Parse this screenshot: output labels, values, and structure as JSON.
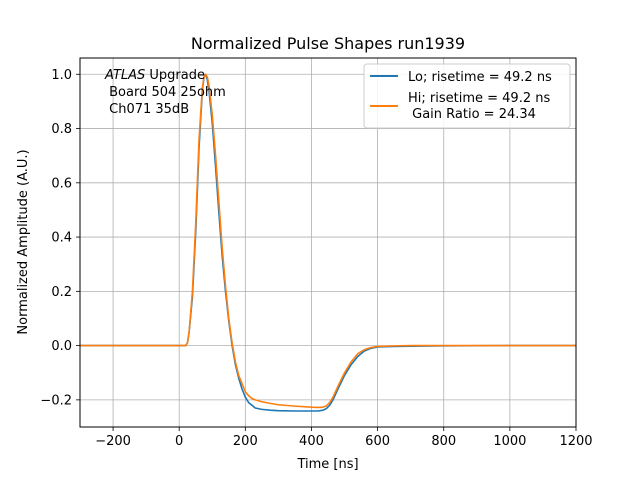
{
  "chart_data": {
    "type": "line",
    "title": "Normalized Pulse Shapes run1939",
    "xlabel": "Time [ns]",
    "ylabel": "Normalized Amplitude (A.U.)",
    "xlim": [
      -300,
      1200
    ],
    "ylim": [
      -0.3,
      1.06
    ],
    "grid": true,
    "legend_position": "top-right",
    "x_ticks": [
      -200,
      0,
      200,
      400,
      600,
      800,
      1000,
      1200
    ],
    "x_tick_labels": [
      "−200",
      "0",
      "200",
      "400",
      "600",
      "800",
      "1000",
      "1200"
    ],
    "y_ticks": [
      -0.2,
      0.0,
      0.2,
      0.4,
      0.6,
      0.8,
      1.0
    ],
    "y_tick_labels": [
      "−0.2",
      "0.0",
      "0.2",
      "0.4",
      "0.6",
      "0.8",
      "1.0"
    ],
    "annotation": {
      "italic_word": "ATLAS",
      "line1_rest": " Upgrade",
      "line2": " Board 504 25ohm",
      "line3": " Ch071 35dB"
    },
    "series": [
      {
        "name": "Lo; risetime = 49.2 ns",
        "color": "#1f77b4",
        "x": [
          -300,
          0,
          20,
          25,
          30,
          40,
          50,
          60,
          70,
          75,
          80,
          85,
          90,
          100,
          110,
          120,
          130,
          140,
          150,
          160,
          170,
          180,
          190,
          200,
          210,
          220,
          230,
          250,
          275,
          300,
          350,
          400,
          420,
          435,
          445,
          455,
          465,
          480,
          500,
          520,
          540,
          560,
          580,
          600,
          650,
          700,
          800,
          1000,
          1200
        ],
        "y": [
          0.0,
          0.0,
          0.0,
          0.01,
          0.05,
          0.18,
          0.42,
          0.73,
          0.94,
          0.99,
          1.0,
          0.98,
          0.94,
          0.82,
          0.66,
          0.49,
          0.33,
          0.2,
          0.09,
          0.0,
          -0.07,
          -0.12,
          -0.16,
          -0.19,
          -0.21,
          -0.22,
          -0.23,
          -0.235,
          -0.238,
          -0.24,
          -0.241,
          -0.241,
          -0.241,
          -0.238,
          -0.232,
          -0.22,
          -0.2,
          -0.16,
          -0.11,
          -0.07,
          -0.04,
          -0.02,
          -0.01,
          -0.005,
          -0.003,
          -0.002,
          -0.001,
          0.0,
          0.0
        ]
      },
      {
        "name": "Hi; risetime = 49.2 ns\n Gain Ratio = 24.34",
        "color": "#ff7f0e",
        "x": [
          -300,
          0,
          20,
          25,
          30,
          40,
          50,
          60,
          70,
          75,
          80,
          85,
          90,
          100,
          110,
          120,
          130,
          140,
          150,
          160,
          170,
          180,
          190,
          200,
          210,
          220,
          230,
          250,
          275,
          300,
          350,
          400,
          420,
          435,
          445,
          455,
          465,
          480,
          500,
          520,
          540,
          560,
          580,
          600,
          650,
          700,
          800,
          1000,
          1200
        ],
        "y": [
          0.0,
          0.0,
          0.0,
          0.01,
          0.05,
          0.2,
          0.45,
          0.76,
          0.95,
          0.99,
          1.0,
          0.99,
          0.96,
          0.85,
          0.7,
          0.53,
          0.36,
          0.22,
          0.1,
          0.01,
          -0.06,
          -0.11,
          -0.14,
          -0.17,
          -0.185,
          -0.195,
          -0.2,
          -0.207,
          -0.213,
          -0.218,
          -0.223,
          -0.227,
          -0.228,
          -0.227,
          -0.222,
          -0.21,
          -0.19,
          -0.15,
          -0.1,
          -0.06,
          -0.03,
          -0.015,
          -0.007,
          -0.003,
          -0.001,
          0.0,
          0.0,
          0.0,
          0.0
        ]
      }
    ]
  }
}
